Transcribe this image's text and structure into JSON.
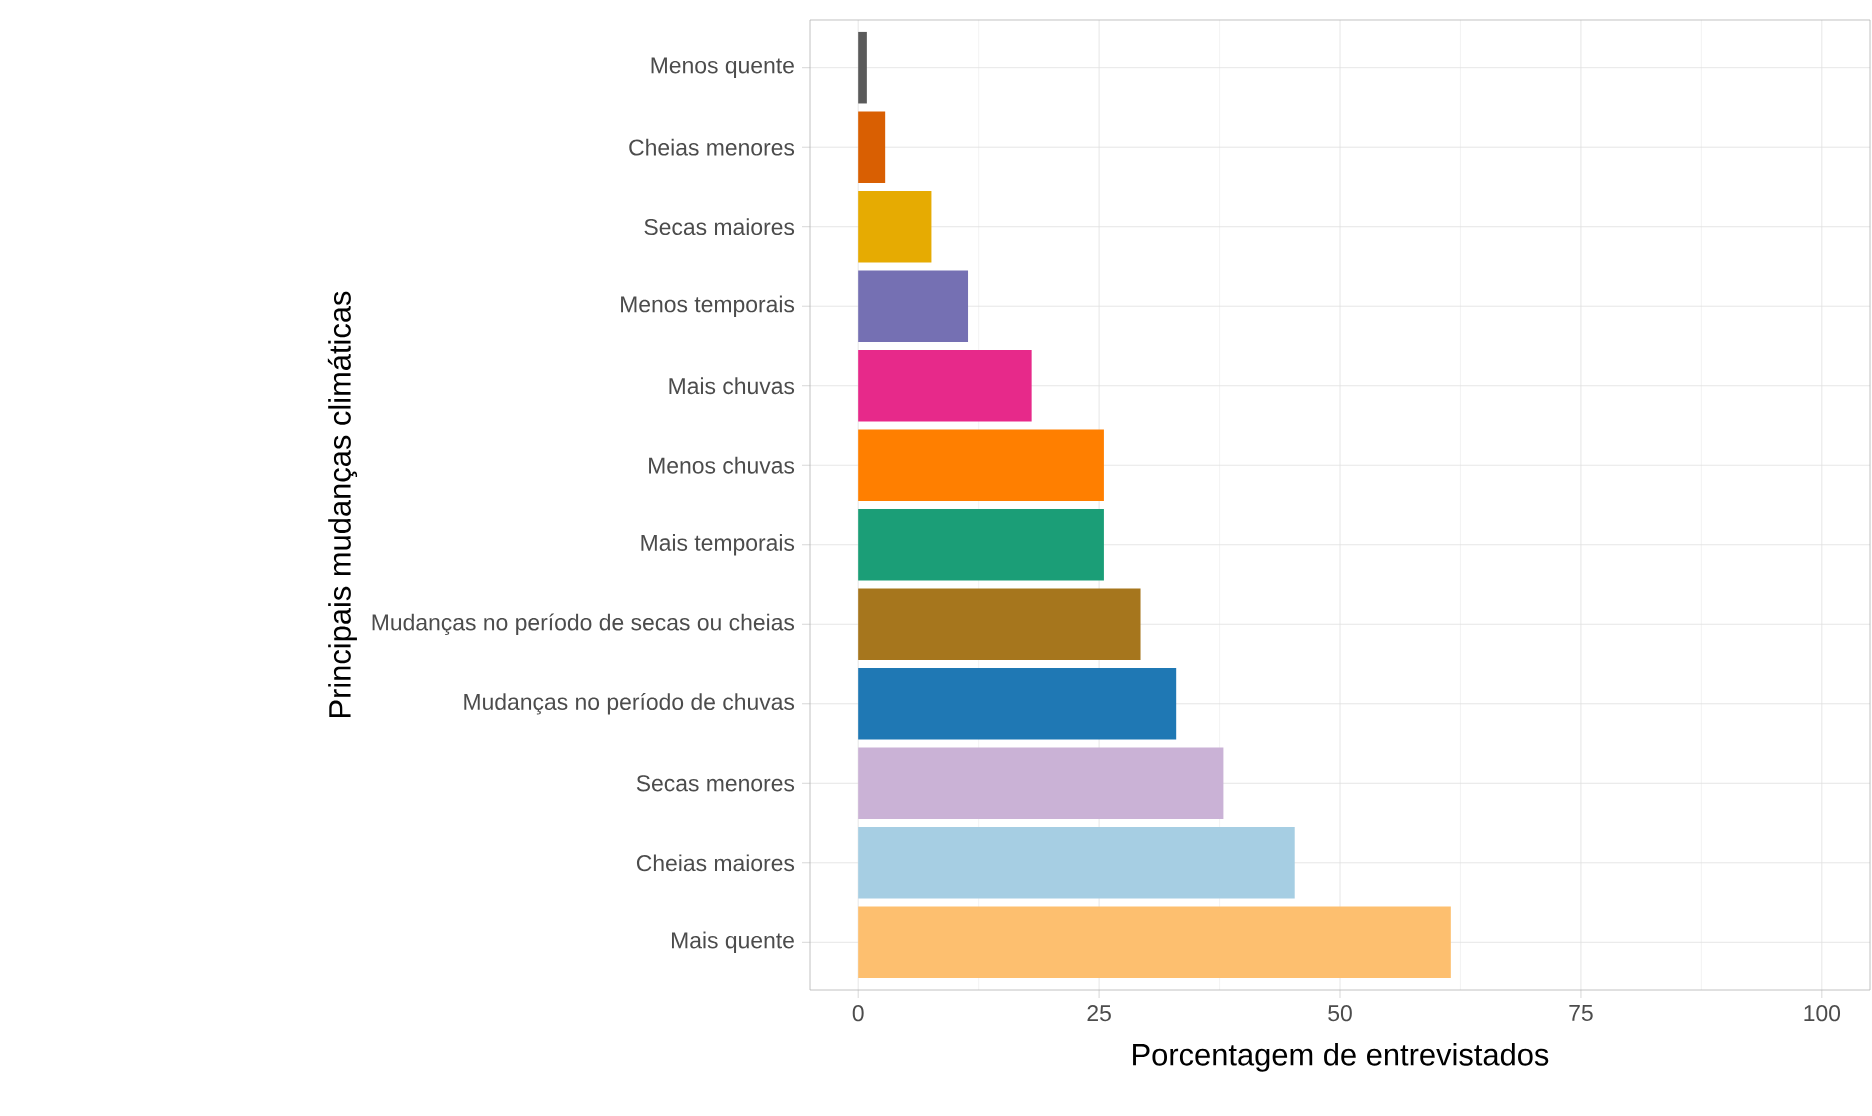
{
  "chart_data": {
    "type": "bar",
    "orientation": "horizontal",
    "xlabel": "Porcentagem de entrevistados",
    "ylabel": "Principais mudanças climáticas",
    "categories": [
      "Menos quente",
      "Cheias menores",
      "Secas maiores",
      "Menos temporais",
      "Mais chuvas",
      "Menos chuvas",
      "Mais temporais",
      "Mudanças no período de secas ou cheias",
      "Mudanças no período de chuvas",
      "Secas menores",
      "Cheias maiores",
      "Mais quente"
    ],
    "values": [
      0.9,
      2.8,
      7.6,
      11.4,
      18.0,
      25.5,
      25.5,
      29.3,
      33.0,
      37.9,
      45.3,
      61.5
    ],
    "colors": [
      "#5a5a5a",
      "#d95f02",
      "#e6ab02",
      "#7570b3",
      "#e7298a",
      "#ff7f00",
      "#1b9e77",
      "#a6761d",
      "#1f78b4",
      "#cab2d6",
      "#a6cee3",
      "#fdbf6f"
    ],
    "xlim": [
      -5,
      105
    ],
    "xticks": [
      0,
      25,
      50,
      75,
      100
    ],
    "grid": true
  }
}
